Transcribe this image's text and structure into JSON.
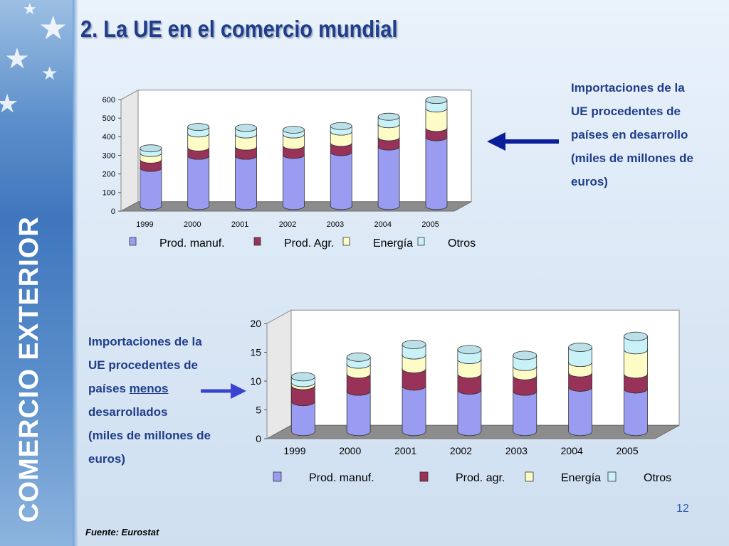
{
  "slide": {
    "title": "2. La UE en el comercio mundial",
    "sidebar_title": "COMERCIO EXTERIOR",
    "page_number": "12",
    "source": "Fuente: Eurostat",
    "colors": {
      "title": "#1f3d8a",
      "manuf": "#9a9cf2",
      "agr": "#983258",
      "energia": "#fdfbc6",
      "otros": "#c9f1f8",
      "arrow_top": "#0b1f9a",
      "arrow_bottom": "#3844cf"
    }
  },
  "desc_top": {
    "lines": [
      "Importaciones de la",
      "UE procedentes de",
      "países en desarrollo",
      "(miles de millones de",
      "euros)"
    ]
  },
  "desc_bottom": {
    "line1": "Importaciones de la",
    "line2": "UE procedentes de",
    "line3_prefix": "países ",
    "line3_u": "menos",
    "line4": "desarrollados",
    "line5": "(miles de millones de",
    "line6": "euros)"
  },
  "chart_data": [
    {
      "type": "bar",
      "stacked": true,
      "three_d": true,
      "categories": [
        "1999",
        "2000",
        "2001",
        "2002",
        "2003",
        "2004",
        "2005"
      ],
      "series": [
        {
          "name": "Prod. manuf.",
          "values": [
            205,
            270,
            270,
            275,
            290,
            320,
            370
          ]
        },
        {
          "name": "Prod. Agr.",
          "values": [
            45,
            45,
            50,
            50,
            50,
            50,
            50
          ]
        },
        {
          "name": "Energía",
          "values": [
            35,
            75,
            65,
            60,
            60,
            70,
            105
          ]
        },
        {
          "name": "Otros",
          "values": [
            25,
            35,
            35,
            25,
            30,
            40,
            45
          ]
        }
      ],
      "yticks": [
        "0",
        "100",
        "200",
        "300",
        "400",
        "500",
        "600"
      ],
      "ylim": [
        0,
        600
      ],
      "grid": false,
      "legend": "bottom"
    },
    {
      "type": "bar",
      "stacked": true,
      "three_d": true,
      "categories": [
        "1999",
        "2000",
        "2001",
        "2002",
        "2003",
        "2004",
        "2005"
      ],
      "series": [
        {
          "name": "Prod. manuf.",
          "values": [
            5.2,
            7.0,
            7.9,
            7.2,
            7.0,
            7.7,
            7.4
          ]
        },
        {
          "name": "Prod. agr.",
          "values": [
            2.8,
            3.0,
            3.0,
            2.8,
            2.7,
            2.5,
            2.6
          ]
        },
        {
          "name": "Energía",
          "values": [
            0.5,
            1.7,
            2.4,
            2.5,
            1.6,
            1.8,
            4.2
          ]
        },
        {
          "name": "Otros",
          "values": [
            1.0,
            1.2,
            1.8,
            1.7,
            1.9,
            2.6,
            2.3
          ]
        }
      ],
      "yticks": [
        "0",
        "5",
        "10",
        "15",
        "20"
      ],
      "ylim": [
        0,
        20
      ],
      "grid": false,
      "legend": "bottom"
    }
  ]
}
